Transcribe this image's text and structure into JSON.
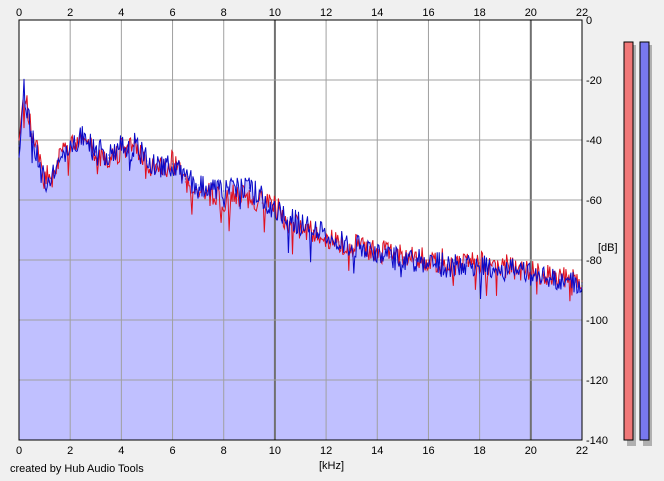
{
  "credit": "created by Hub Audio Tools",
  "chart_data": {
    "type": "area",
    "xlabel": "[kHz]",
    "ylabel": "[dB]",
    "xlim": [
      0,
      22
    ],
    "ylim": [
      -140,
      0
    ],
    "x_ticks": [
      0,
      2,
      4,
      6,
      8,
      10,
      12,
      14,
      16,
      18,
      20,
      22
    ],
    "y_ticks": [
      0,
      -20,
      -40,
      -60,
      -80,
      -100,
      -120,
      -140
    ],
    "grid": true,
    "series": [
      {
        "color": "#e0101e",
        "x": [
          0,
          0.2,
          0.5,
          1,
          1.5,
          2,
          2.5,
          3,
          3.5,
          4,
          4.5,
          5,
          5.5,
          6,
          6.5,
          7,
          7.5,
          8,
          8.5,
          9,
          9.5,
          10,
          10.5,
          11,
          11.5,
          12,
          12.5,
          13,
          13.5,
          14,
          14.5,
          15,
          15.5,
          16,
          16.5,
          17,
          17.5,
          18,
          18.5,
          19,
          19.5,
          20,
          20.5,
          21,
          21.5,
          22
        ],
        "y": [
          -40,
          -25,
          -38,
          -52,
          -47,
          -42,
          -40,
          -44,
          -46,
          -43,
          -42,
          -48,
          -50,
          -47,
          -54,
          -57,
          -58,
          -60,
          -58,
          -60,
          -61,
          -62,
          -67,
          -69,
          -70,
          -73,
          -74,
          -75,
          -76,
          -77,
          -78,
          -79,
          -79,
          -80,
          -80,
          -81,
          -81,
          -81,
          -82,
          -82,
          -83,
          -84,
          -85,
          -86,
          -86,
          -87
        ]
      },
      {
        "color": "#0a0ac8",
        "x": [
          0,
          0.2,
          0.5,
          1,
          1.5,
          2,
          2.5,
          3,
          3.5,
          4,
          4.5,
          5,
          5.5,
          6,
          6.5,
          7,
          7.5,
          8,
          8.5,
          9,
          9.5,
          10,
          10.5,
          11,
          11.5,
          12,
          12.5,
          13,
          13.5,
          14,
          14.5,
          15,
          15.5,
          16,
          16.5,
          17,
          17.5,
          18,
          18.5,
          19,
          19.5,
          20,
          20.5,
          21,
          21.5,
          22
        ],
        "y": [
          -42,
          -24,
          -40,
          -54,
          -48,
          -41,
          -39,
          -43,
          -45,
          -42,
          -41,
          -47,
          -49,
          -48,
          -53,
          -55,
          -56,
          -57,
          -55,
          -56,
          -59,
          -63,
          -66,
          -68,
          -70,
          -72,
          -74,
          -75,
          -76,
          -77,
          -79,
          -80,
          -80,
          -81,
          -81,
          -82,
          -82,
          -82,
          -83,
          -83,
          -84,
          -85,
          -86,
          -87,
          -87,
          -88
        ]
      }
    ],
    "fill_color": "#c0c0ff",
    "level_meters": [
      {
        "color": "#f07878",
        "value": -8
      },
      {
        "color": "#7878f0",
        "value": -8
      }
    ]
  }
}
